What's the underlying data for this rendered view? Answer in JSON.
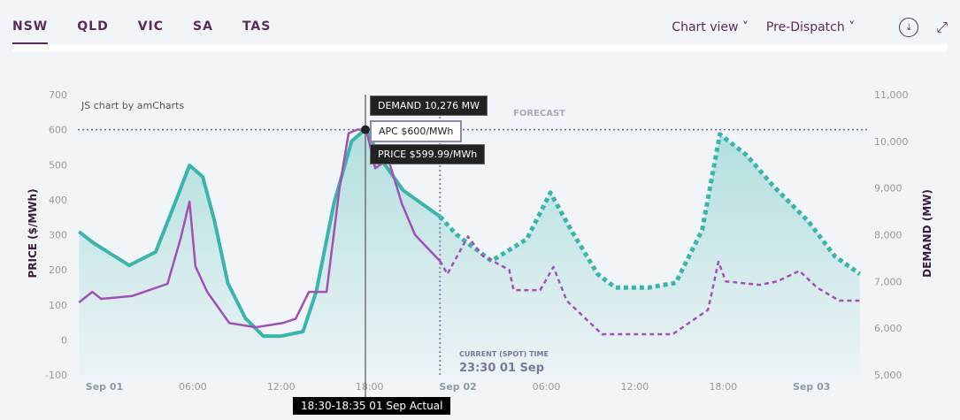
{
  "tabs": [
    "NSW",
    "QLD",
    "VIC",
    "SA",
    "TAS"
  ],
  "controls": {
    "chart_view": "Chart view",
    "dispatch": "Pre-Dispatch",
    "download_icon": "download-icon",
    "expand_icon": "expand-icon"
  },
  "credit": "JS chart by amCharts",
  "forecast_label": "FORECAST",
  "tooltips": {
    "demand": "DEMAND 10,276 MW",
    "apc": "APC $600/MWh",
    "price": "PRICE $599.99/MWh",
    "time": "18:30-18:35 01 Sep Actual"
  },
  "current_time": {
    "label": "CURRENT (SPOT) TIME",
    "value": "23:30 01 Sep"
  },
  "colors": {
    "demand": "#3bb5ac",
    "price": "#a350b5",
    "apc": "#6a6a9a"
  },
  "chart_data": {
    "type": "line",
    "ylabel_left": "PRICE ($/MWh)",
    "ylabel_right": "DEMAND (MW)",
    "left_ticks": [
      "700",
      "600",
      "500",
      "400",
      "300",
      "200",
      "100",
      "0",
      "-100"
    ],
    "right_ticks": [
      "11,000",
      "10,000",
      "9,000",
      "8,000",
      "7,000",
      "6,000",
      "5,000"
    ],
    "ylim_left": [
      -100,
      700
    ],
    "ylim_right": [
      5000,
      11000
    ],
    "x_unit": "hours since Sep 01 00:00",
    "x_ticks": [
      {
        "h": 0,
        "label": "Sep 01",
        "bold": true
      },
      {
        "h": 6,
        "label": "06:00"
      },
      {
        "h": 12,
        "label": "12:00"
      },
      {
        "h": 18,
        "label": "18:00"
      },
      {
        "h": 24,
        "label": "Sep 02",
        "bold": true
      },
      {
        "h": 30,
        "label": "06:00"
      },
      {
        "h": 36,
        "label": "12:00"
      },
      {
        "h": 42,
        "label": "18:00"
      },
      {
        "h": 48,
        "label": "Sep 03",
        "bold": true
      }
    ],
    "apc": 600,
    "current_hour": 23.5,
    "cursor_hour": 18.5,
    "series": [
      {
        "name": "Demand actual",
        "axis": "right",
        "x": [
          -1,
          0,
          2.4,
          4.2,
          5.5,
          6.5,
          7.4,
          8.2,
          9.1,
          10.3,
          11.5,
          12.7,
          14.2,
          15.1,
          16.3,
          17.5,
          18.5,
          19.3,
          21,
          23.5
        ],
        "values": [
          8065,
          7820,
          7345,
          7630,
          8670,
          9485,
          9240,
          8290,
          6965,
          6210,
          5830,
          5830,
          5925,
          6780,
          8670,
          10000,
          10276,
          9710,
          8950,
          8390
        ]
      },
      {
        "name": "Demand forecast",
        "axis": "right",
        "x": [
          23.5,
          24.6,
          27,
          29.4,
          31,
          32.4,
          34.2,
          35.4,
          37.7,
          39.5,
          41.3,
          42.5,
          44.3,
          46.1,
          48.5,
          50.3,
          52
        ],
        "values": [
          8390,
          8010,
          7440,
          7910,
          8900,
          8100,
          7160,
          6870,
          6870,
          6970,
          8100,
          10150,
          9710,
          9050,
          8290,
          7540,
          7160
        ]
      },
      {
        "name": "Price actual",
        "axis": "left",
        "x": [
          -1,
          -0.1,
          0.5,
          2.6,
          5,
          5.9,
          6.5,
          6.9,
          7.7,
          9.2,
          11,
          12.8,
          13.7,
          14.6,
          15.8,
          16.7,
          17.3,
          17.9,
          18.5,
          19.1,
          20,
          20.9,
          21.8,
          22.7,
          23.5
        ],
        "values": [
          107,
          137,
          117,
          125,
          160,
          290,
          395,
          210,
          137,
          48,
          36,
          48,
          60,
          137,
          137,
          440,
          590,
          600,
          600,
          490,
          515,
          390,
          300,
          260,
          225
        ]
      },
      {
        "name": "Price forecast",
        "axis": "left",
        "x": [
          23.5,
          24,
          25.4,
          26.4,
          28.2,
          28.5,
          30.3,
          31.2,
          32.1,
          34.5,
          39.3,
          41.7,
          42.4,
          42.9,
          45.2,
          46.4,
          47.9,
          49.1,
          50.6,
          52
        ],
        "values": [
          225,
          188,
          295,
          240,
          200,
          142,
          142,
          208,
          112,
          16,
          16,
          86,
          223,
          167,
          157,
          167,
          197,
          149,
          112,
          112
        ]
      }
    ]
  }
}
